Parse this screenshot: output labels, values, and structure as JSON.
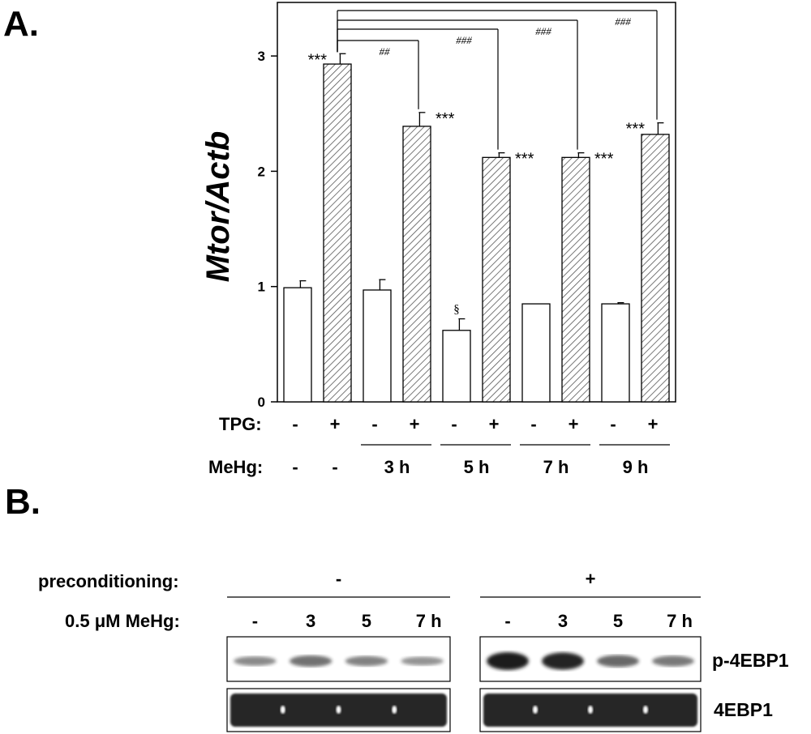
{
  "panels": {
    "a_label": "A.",
    "b_label": "B."
  },
  "chart_data": {
    "type": "bar",
    "ylabel": "Mtor/Actb",
    "ylim": [
      0,
      3.5
    ],
    "yticks": [
      "0",
      "1",
      "2",
      "3"
    ],
    "grid": false,
    "conditions": [
      {
        "tpg": "-",
        "mehg": "-",
        "value": 0.99,
        "error": 0.06,
        "pattern": "open",
        "sig": ""
      },
      {
        "tpg": "+",
        "mehg": "-",
        "value": 2.93,
        "error": 0.09,
        "pattern": "hatched",
        "sig": "***"
      },
      {
        "tpg": "-",
        "mehg": "3 h",
        "value": 0.97,
        "error": 0.09,
        "pattern": "open",
        "sig": ""
      },
      {
        "tpg": "+",
        "mehg": "3 h",
        "value": 2.39,
        "error": 0.12,
        "pattern": "hatched",
        "sig": "***"
      },
      {
        "tpg": "-",
        "mehg": "5 h",
        "value": 0.62,
        "error": 0.1,
        "pattern": "open",
        "sig": "§"
      },
      {
        "tpg": "+",
        "mehg": "5 h",
        "value": 2.12,
        "error": 0.04,
        "pattern": "hatched",
        "sig": "***"
      },
      {
        "tpg": "-",
        "mehg": "7 h",
        "value": 0.85,
        "error": 0.0,
        "pattern": "open",
        "sig": ""
      },
      {
        "tpg": "+",
        "mehg": "7 h",
        "value": 2.12,
        "error": 0.04,
        "pattern": "hatched",
        "sig": "***"
      },
      {
        "tpg": "-",
        "mehg": "9 h",
        "value": 0.85,
        "error": 0.01,
        "pattern": "open",
        "sig": ""
      },
      {
        "tpg": "+",
        "mehg": "9 h",
        "value": 2.32,
        "error": 0.1,
        "pattern": "hatched",
        "sig": "***"
      }
    ],
    "brackets": [
      {
        "to_bar": 3,
        "label": "##"
      },
      {
        "to_bar": 5,
        "label": "###"
      },
      {
        "to_bar": 7,
        "label": "###"
      },
      {
        "to_bar": 9,
        "label": "###"
      }
    ],
    "row_labels": {
      "tpg": "TPG:",
      "mehg": "MeHg:"
    },
    "group_labels": [
      "3 h",
      "5 h",
      "7 h",
      "9 h"
    ]
  },
  "blot": {
    "preconditioning_label": "preconditioning:",
    "dose_label": "0.5 μM MeHg:",
    "groups": [
      {
        "preconditioning": "-",
        "lanes": [
          "-",
          "3",
          "5",
          "7 h"
        ],
        "p4ebp1_intensity": [
          0.35,
          0.5,
          0.4,
          0.3
        ]
      },
      {
        "preconditioning": "+",
        "lanes": [
          "-",
          "3",
          "5",
          "7 h"
        ],
        "p4ebp1_intensity": [
          1.0,
          0.95,
          0.55,
          0.45
        ]
      }
    ],
    "rows": [
      "p-4EBP1",
      "4EBP1"
    ],
    "colors": {
      "band": "#1c1c1c",
      "band_total": "#262626"
    }
  }
}
